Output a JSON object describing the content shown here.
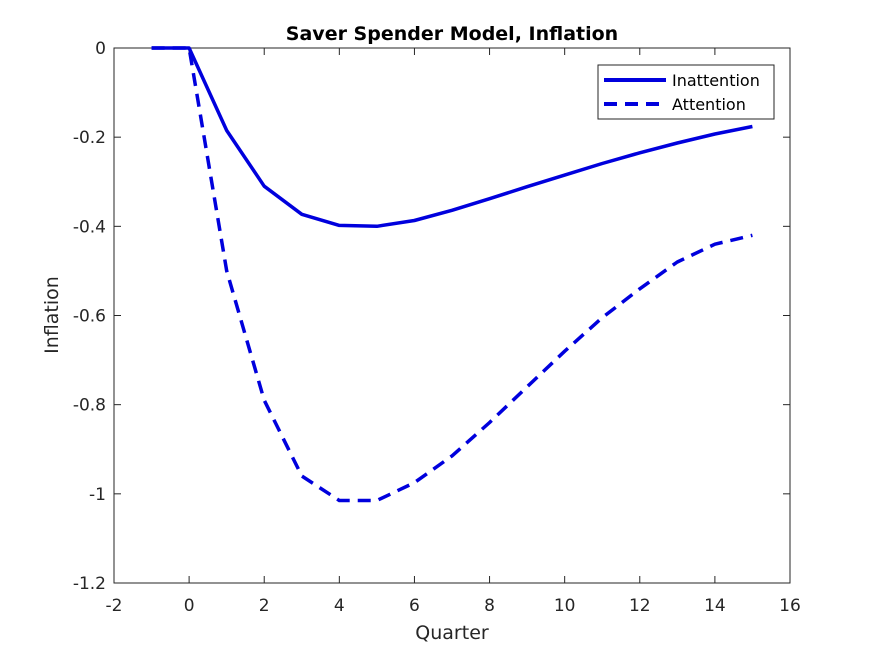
{
  "chart_data": {
    "type": "line",
    "title": "Saver Spender Model, Inflation",
    "xlabel": "Quarter",
    "ylabel": "Inflation",
    "xlim": [
      -2,
      16
    ],
    "ylim": [
      -1.2,
      0
    ],
    "xticks": [
      -2,
      0,
      2,
      4,
      6,
      8,
      10,
      12,
      14,
      16
    ],
    "yticks": [
      0,
      -0.2,
      -0.4,
      -0.6,
      -0.8,
      -1,
      -1.2
    ],
    "xtick_labels": [
      "-2",
      "0",
      "2",
      "4",
      "6",
      "8",
      "10",
      "12",
      "14",
      "16"
    ],
    "ytick_labels": [
      "0",
      "-0.2",
      "-0.4",
      "-0.6",
      "-0.8",
      "-1",
      "-1.2"
    ],
    "grid": false,
    "legend_position": "top-right",
    "series": [
      {
        "name": "Inattention",
        "style": "solid",
        "color": "#0000dd",
        "x": [
          -1,
          0,
          1,
          2,
          3,
          4,
          5,
          6,
          7,
          8,
          9,
          10,
          11,
          12,
          13,
          14,
          15
        ],
        "y": [
          0,
          0,
          -0.185,
          -0.31,
          -0.373,
          -0.398,
          -0.4,
          -0.387,
          -0.364,
          -0.338,
          -0.311,
          -0.285,
          -0.259,
          -0.235,
          -0.213,
          -0.193,
          -0.176
        ]
      },
      {
        "name": "Attention",
        "style": "dashed",
        "color": "#0000dd",
        "x": [
          -1,
          0,
          1,
          2,
          3,
          4,
          5,
          6,
          7,
          8,
          9,
          10,
          11,
          12,
          13,
          14,
          15
        ],
        "y": [
          0,
          0,
          -0.5,
          -0.79,
          -0.96,
          -1.015,
          -1.015,
          -0.975,
          -0.915,
          -0.84,
          -0.76,
          -0.68,
          -0.605,
          -0.54,
          -0.48,
          -0.44,
          -0.42
        ]
      }
    ]
  }
}
